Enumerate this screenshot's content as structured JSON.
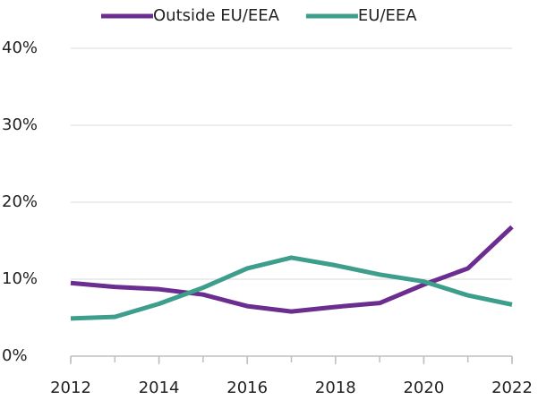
{
  "chart_data": {
    "type": "line",
    "x": [
      2012,
      2013,
      2014,
      2015,
      2016,
      2017,
      2018,
      2019,
      2020,
      2021,
      2022
    ],
    "series": [
      {
        "name": "Outside EU/EEA",
        "color": "#6b2d8f",
        "values": [
          9.5,
          9.0,
          8.7,
          8.0,
          6.5,
          5.8,
          6.4,
          6.9,
          9.3,
          11.4,
          16.8
        ]
      },
      {
        "name": "EU/EEA",
        "color": "#3d9e8b",
        "values": [
          4.9,
          5.1,
          6.8,
          8.9,
          11.4,
          12.8,
          11.8,
          10.6,
          9.7,
          7.9,
          6.7
        ]
      }
    ],
    "xlim": [
      2012,
      2022
    ],
    "xticks": [
      2012,
      2014,
      2016,
      2018,
      2020,
      2022
    ],
    "ylim": [
      0,
      40
    ],
    "yticks": [
      {
        "value": 0,
        "label": "0%"
      },
      {
        "value": 10,
        "label": "10%"
      },
      {
        "value": 20,
        "label": "20%"
      },
      {
        "value": 30,
        "label": "30%"
      },
      {
        "value": 40,
        "label": "40%"
      }
    ],
    "grid": true,
    "legend": "top"
  }
}
